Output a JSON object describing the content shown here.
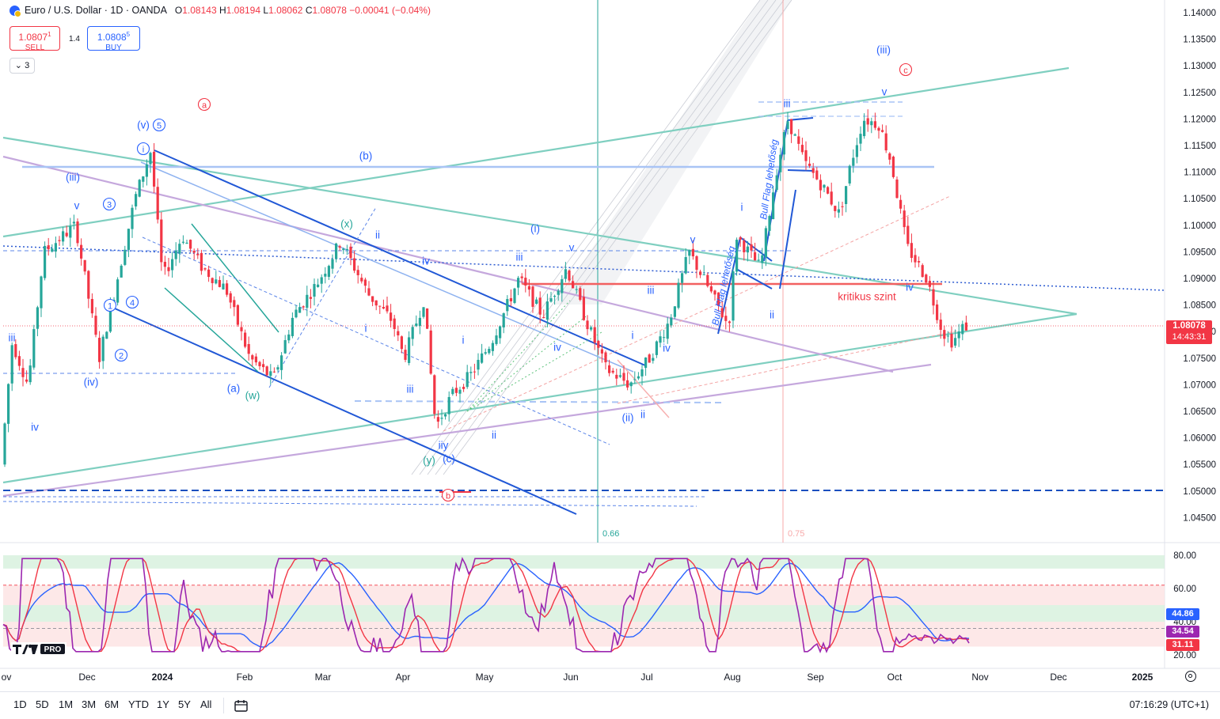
{
  "header": {
    "symbol": "Euro / U.S. Dollar · 1D · OANDA",
    "o_label": "O",
    "o": "1.08143",
    "h_label": "H",
    "h": "1.08194",
    "l_label": "L",
    "l": "1.08062",
    "c_label": "C",
    "c": "1.08078",
    "change": "−0.00041 (−0.04%)"
  },
  "trade": {
    "sell_price": "1.0807",
    "sell_sup": "1",
    "sell_label": "SELL",
    "spread": "1.4",
    "buy_price": "1.0808",
    "buy_sup": "5",
    "buy_label": "BUY"
  },
  "indicator_collapse": {
    "label": "3"
  },
  "price_axis": {
    "ticks": [
      "1.14000",
      "1.13500",
      "1.13000",
      "1.12500",
      "1.12000",
      "1.11500",
      "1.11000",
      "1.10500",
      "1.10000",
      "1.09500",
      "1.09000",
      "1.08500",
      "1.08000",
      "1.07500",
      "1.07000",
      "1.06500",
      "1.06000",
      "1.05500",
      "1.05000",
      "1.04500"
    ],
    "last_price": "1.08078",
    "countdown": "14:43:31"
  },
  "indicator_axis": {
    "ticks": [
      "80.00",
      "60.00",
      "40.00",
      "20.00"
    ],
    "values": [
      {
        "label": "44.86",
        "color": "#2962ff"
      },
      {
        "label": "34.54",
        "color": "#9c27b0"
      },
      {
        "label": "31.11",
        "color": "#f23645"
      }
    ]
  },
  "time_axis": {
    "labels": [
      "ov",
      "Dec",
      "2024",
      "Feb",
      "Mar",
      "Apr",
      "May",
      "Jun",
      "Jul",
      "Aug",
      "Sep",
      "Oct",
      "Nov",
      "Dec",
      "2025"
    ]
  },
  "annotations": [
    {
      "text": "a",
      "color": "#f23645",
      "circle": true
    },
    {
      "text": "(v)",
      "color": "#2962ff"
    },
    {
      "text": "5",
      "color": "#2962ff",
      "circle": true
    },
    {
      "text": "i",
      "color": "#2962ff",
      "circle": true
    },
    {
      "text": "(b)",
      "color": "#2962ff"
    },
    {
      "text": "(iii)",
      "color": "#2962ff"
    },
    {
      "text": "v",
      "color": "#2962ff"
    },
    {
      "text": "3",
      "color": "#2962ff",
      "circle": true
    },
    {
      "text": "1",
      "color": "#2962ff",
      "circle": true
    },
    {
      "text": "4",
      "color": "#2962ff",
      "circle": true
    },
    {
      "text": "2",
      "color": "#2962ff",
      "circle": true
    },
    {
      "text": "iii",
      "color": "#2962ff"
    },
    {
      "text": "(iv)",
      "color": "#2962ff"
    },
    {
      "text": "iv",
      "color": "#2962ff"
    },
    {
      "text": "(a)",
      "color": "#2962ff"
    },
    {
      "text": "(w)",
      "color": "#26a69a"
    },
    {
      "text": "(x)",
      "color": "#26a69a"
    },
    {
      "text": "ii",
      "color": "#2962ff"
    },
    {
      "text": "iv",
      "color": "#2962ff"
    },
    {
      "text": "i",
      "color": "#2962ff"
    },
    {
      "text": "iii",
      "color": "#2962ff"
    },
    {
      "text": "i",
      "color": "#2962ff"
    },
    {
      "text": "ii",
      "color": "#2962ff"
    },
    {
      "text": "iiy",
      "color": "#2962ff"
    },
    {
      "text": "(y)",
      "color": "#26a69a"
    },
    {
      "text": "(c)",
      "color": "#2962ff"
    },
    {
      "text": "b",
      "color": "#f23645",
      "circle": true
    },
    {
      "text": "(i)",
      "color": "#2962ff"
    },
    {
      "text": "iii",
      "color": "#2962ff"
    },
    {
      "text": "v",
      "color": "#2962ff"
    },
    {
      "text": "iv",
      "color": "#2962ff"
    },
    {
      "text": "(ii)",
      "color": "#2962ff"
    },
    {
      "text": "ii",
      "color": "#2962ff"
    },
    {
      "text": "i",
      "color": "#2962ff"
    },
    {
      "text": "iv",
      "color": "#2962ff"
    },
    {
      "text": "iii",
      "color": "#2962ff"
    },
    {
      "text": "v",
      "color": "#2962ff"
    },
    {
      "text": "i",
      "color": "#2962ff"
    },
    {
      "text": "ii",
      "color": "#2962ff"
    },
    {
      "text": "iii",
      "color": "#2962ff"
    },
    {
      "text": "(iii)",
      "color": "#2962ff"
    },
    {
      "text": "c",
      "color": "#f23645",
      "circle": true
    },
    {
      "text": "v",
      "color": "#2962ff"
    },
    {
      "text": "iv",
      "color": "#2962ff"
    },
    {
      "text": "kritikus szint",
      "color": "#f23645"
    },
    {
      "text": "Bull Flag lehetőség",
      "color": "#2962ff"
    },
    {
      "text": "Bull Flag lehetőség",
      "color": "#2962ff"
    },
    {
      "text": "0.66",
      "color": "#26a69a"
    },
    {
      "text": "0.75",
      "color": "#f7a9a9"
    }
  ],
  "toolbar": {
    "ranges": [
      "1D",
      "5D",
      "1M",
      "3M",
      "6M",
      "YTD",
      "1Y",
      "5Y",
      "All"
    ],
    "clock": "07:16:29 (UTC+1)"
  },
  "colors": {
    "up": "#26a69a",
    "down": "#f23645",
    "accent": "#2962ff"
  }
}
